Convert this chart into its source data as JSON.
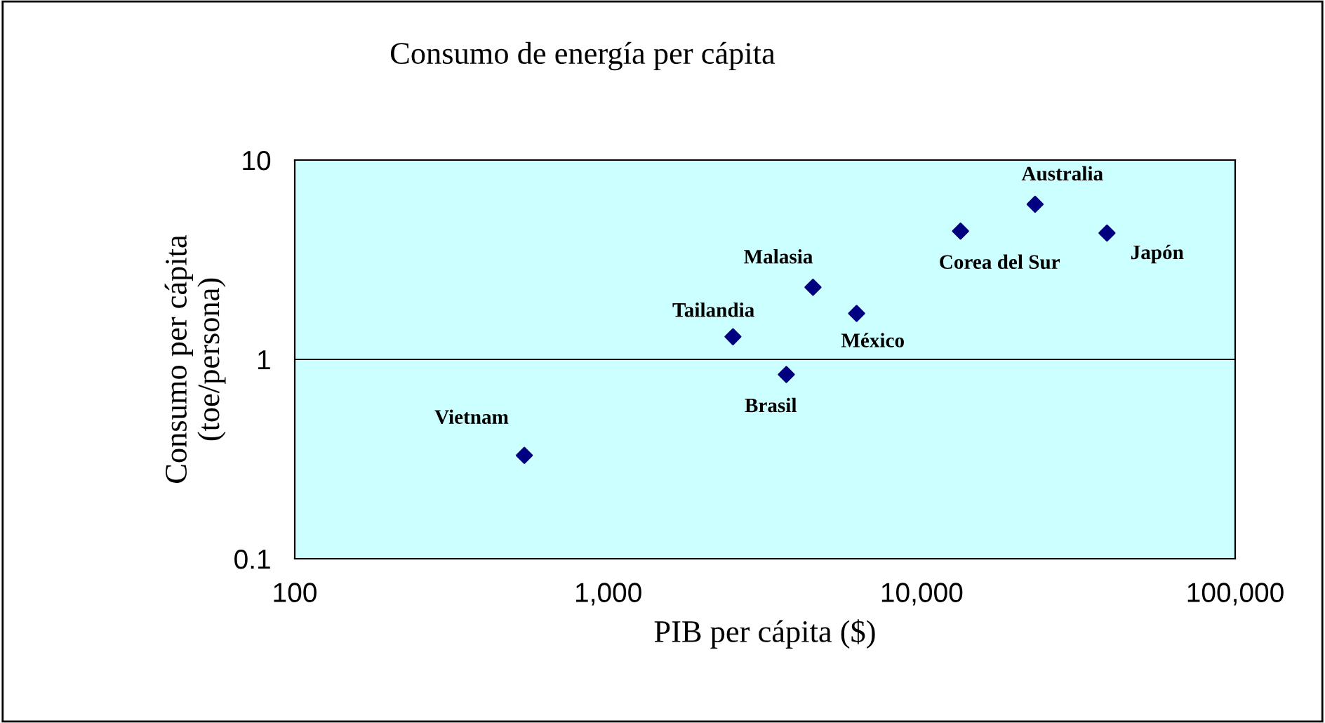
{
  "chart_data": {
    "type": "scatter",
    "title": "Consumo de energía per cápita",
    "xlabel": "PIB per cápita ($)",
    "ylabel": "Consumo per cápita\n(toe/persona)",
    "x": [
      540,
      2500,
      3700,
      4500,
      6200,
      13300,
      23000,
      39000
    ],
    "series": [
      {
        "color": "#000080",
        "values": [
          0.33,
          1.3,
          0.84,
          2.3,
          1.7,
          4.4,
          6.0,
          4.3
        ]
      }
    ],
    "annotations": [
      {
        "text": "Vietnam",
        "x": 540,
        "y": 0.33
      },
      {
        "text": "Tailandia",
        "x": 2500,
        "y": 1.3
      },
      {
        "text": "Brasil",
        "x": 3700,
        "y": 0.84
      },
      {
        "text": "Malasia",
        "x": 4500,
        "y": 2.3
      },
      {
        "text": "México",
        "x": 6200,
        "y": 1.7
      },
      {
        "text": "Corea del Sur",
        "x": 13300,
        "y": 4.4
      },
      {
        "text": "Australia",
        "x": 23000,
        "y": 6.0
      },
      {
        "text": "Japón",
        "x": 39000,
        "y": 4.3
      }
    ],
    "log": "xy",
    "xlim": [
      100,
      100000
    ],
    "ylim": [
      0.1,
      10
    ],
    "xticks": [
      100,
      {
        "value": 1000,
        "label": "1,000"
      },
      {
        "value": 10000,
        "label": "10,000"
      },
      {
        "value": 100000,
        "label": "100,000"
      }
    ],
    "yticks": [
      0.1,
      1,
      10
    ],
    "grid": "y",
    "marker": "diamond",
    "legend": false
  }
}
